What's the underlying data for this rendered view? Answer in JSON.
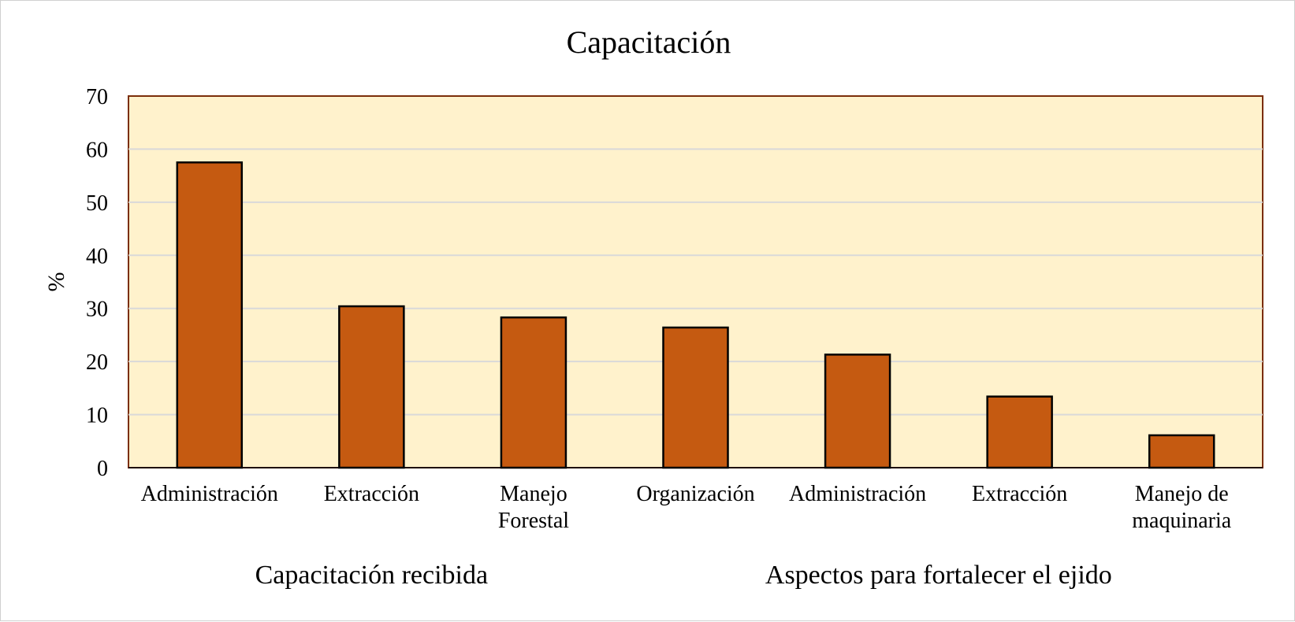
{
  "chart_data": {
    "type": "bar",
    "title": "Capacitación",
    "ylabel": "%",
    "xlabel": "",
    "ylim": [
      0,
      70
    ],
    "yticks": [
      0,
      10,
      20,
      30,
      40,
      50,
      60,
      70
    ],
    "grid": true,
    "categories": [
      [
        "Administración"
      ],
      [
        "Extracción"
      ],
      [
        "Manejo",
        "Forestal"
      ],
      [
        "Organización"
      ],
      [
        "Administración"
      ],
      [
        "Extracción"
      ],
      [
        "Manejo de",
        "maquinaria"
      ]
    ],
    "values": [
      57.5,
      30.4,
      28.3,
      26.4,
      21.3,
      13.4,
      6.1
    ],
    "groups": [
      {
        "label": "Capacitación recibida",
        "start": 0,
        "end": 2
      },
      {
        "label": "Aspectos para fortalecer el ejido",
        "start": 3,
        "end": 6
      }
    ],
    "colors": {
      "bar": "#C55A11",
      "bar_edge": "#000000",
      "plot_bg": "#FFF2CC",
      "plot_border": "#7B2E0A",
      "grid": "#D9D9D9"
    }
  }
}
